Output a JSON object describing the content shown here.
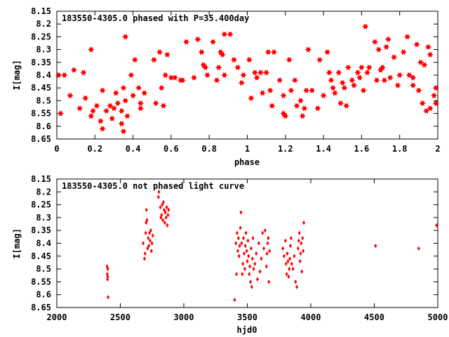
{
  "chart_data": [
    {
      "type": "scatter",
      "title": "183550-4305.0 phased with P=35.400day",
      "xlabel": "phase",
      "ylabel": "I[mag]",
      "xlim": [
        0,
        2
      ],
      "ylim": [
        8.15,
        8.65
      ],
      "y_inverted": true,
      "x_ticks": [
        0,
        0.2,
        0.4,
        0.6,
        0.8,
        1,
        1.2,
        1.4,
        1.6,
        1.8,
        2
      ],
      "x_tick_labels": [
        "0",
        "0.2",
        "0.4",
        "0.6",
        "0.8",
        "1",
        "1.2",
        "1.4",
        "1.6",
        "1.8",
        "2"
      ],
      "y_ticks": [
        8.15,
        8.2,
        8.25,
        8.3,
        8.35,
        8.4,
        8.45,
        8.5,
        8.55,
        8.6,
        8.65
      ],
      "y_tick_labels": [
        "8.15",
        "8.2",
        "8.25",
        "8.3",
        "8.35",
        "8.4",
        "8.45",
        "8.5",
        "8.55",
        "8.6",
        "8.65"
      ],
      "grid": false,
      "marker": "star",
      "color": "#ff0000",
      "points": [
        [
          0.01,
          8.4
        ],
        [
          0.02,
          8.55
        ],
        [
          0.04,
          8.4
        ],
        [
          0.07,
          8.48
        ],
        [
          0.09,
          8.38
        ],
        [
          0.12,
          8.53
        ],
        [
          0.14,
          8.39
        ],
        [
          0.15,
          8.49
        ],
        [
          0.18,
          8.3
        ],
        [
          0.18,
          8.56
        ],
        [
          0.19,
          8.54
        ],
        [
          0.21,
          8.52
        ],
        [
          0.23,
          8.58
        ],
        [
          0.24,
          8.61
        ],
        [
          0.24,
          8.46
        ],
        [
          0.26,
          8.54
        ],
        [
          0.28,
          8.52
        ],
        [
          0.29,
          8.57
        ],
        [
          0.3,
          8.53
        ],
        [
          0.31,
          8.47
        ],
        [
          0.32,
          8.51
        ],
        [
          0.34,
          8.54
        ],
        [
          0.34,
          8.59
        ],
        [
          0.35,
          8.62
        ],
        [
          0.35,
          8.45
        ],
        [
          0.36,
          8.25
        ],
        [
          0.36,
          8.5
        ],
        [
          0.37,
          8.56
        ],
        [
          0.39,
          8.4
        ],
        [
          0.4,
          8.48
        ],
        [
          0.41,
          8.34
        ],
        [
          0.43,
          8.45
        ],
        [
          0.44,
          8.51
        ],
        [
          0.44,
          8.53
        ],
        [
          0.46,
          8.47
        ],
        [
          0.51,
          8.34
        ],
        [
          0.52,
          8.51
        ],
        [
          0.54,
          8.31
        ],
        [
          0.55,
          8.45
        ],
        [
          0.56,
          8.52
        ],
        [
          0.57,
          8.4
        ],
        [
          0.58,
          8.32
        ],
        [
          0.6,
          8.41
        ],
        [
          0.62,
          8.41
        ],
        [
          0.65,
          8.42
        ],
        [
          0.66,
          8.42
        ],
        [
          0.68,
          8.27
        ],
        [
          0.72,
          8.41
        ],
        [
          0.74,
          8.26
        ],
        [
          0.76,
          8.31
        ],
        [
          0.77,
          8.36
        ],
        [
          0.78,
          8.37
        ],
        [
          0.79,
          8.4
        ],
        [
          0.82,
          8.27
        ],
        [
          0.84,
          8.42
        ],
        [
          0.85,
          8.37
        ],
        [
          0.86,
          8.31
        ],
        [
          0.87,
          8.32
        ],
        [
          0.88,
          8.24
        ],
        [
          0.88,
          8.4
        ],
        [
          0.91,
          8.24
        ],
        [
          0.93,
          8.34
        ],
        [
          0.95,
          8.37
        ],
        [
          0.97,
          8.43
        ],
        [
          0.98,
          8.4
        ],
        [
          1.01,
          8.34
        ],
        [
          1.02,
          8.49
        ],
        [
          1.04,
          8.39
        ],
        [
          1.05,
          8.41
        ],
        [
          1.07,
          8.39
        ],
        [
          1.08,
          8.47
        ],
        [
          1.1,
          8.39
        ],
        [
          1.11,
          8.31
        ],
        [
          1.12,
          8.46
        ],
        [
          1.13,
          8.52
        ],
        [
          1.14,
          8.31
        ],
        [
          1.17,
          8.42
        ],
        [
          1.19,
          8.55
        ],
        [
          1.19,
          8.48
        ],
        [
          1.2,
          8.56
        ],
        [
          1.22,
          8.34
        ],
        [
          1.23,
          8.46
        ],
        [
          1.25,
          8.42
        ],
        [
          1.26,
          8.52
        ],
        [
          1.28,
          8.5
        ],
        [
          1.29,
          8.56
        ],
        [
          1.3,
          8.53
        ],
        [
          1.31,
          8.46
        ],
        [
          1.32,
          8.3
        ],
        [
          1.34,
          8.46
        ],
        [
          1.37,
          8.53
        ],
        [
          1.38,
          8.34
        ],
        [
          1.4,
          8.48
        ],
        [
          1.42,
          8.31
        ],
        [
          1.43,
          8.39
        ],
        [
          1.44,
          8.42
        ],
        [
          1.45,
          8.45
        ],
        [
          1.46,
          8.47
        ],
        [
          1.48,
          8.39
        ],
        [
          1.49,
          8.51
        ],
        [
          1.5,
          8.43
        ],
        [
          1.51,
          8.45
        ],
        [
          1.52,
          8.52
        ],
        [
          1.53,
          8.37
        ],
        [
          1.55,
          8.42
        ],
        [
          1.56,
          8.44
        ],
        [
          1.58,
          8.39
        ],
        [
          1.59,
          8.41
        ],
        [
          1.6,
          8.37
        ],
        [
          1.61,
          8.46
        ],
        [
          1.62,
          8.21
        ],
        [
          1.63,
          8.39
        ],
        [
          1.64,
          8.37
        ],
        [
          1.67,
          8.27
        ],
        [
          1.68,
          8.42
        ],
        [
          1.69,
          8.3
        ],
        [
          1.7,
          8.38
        ],
        [
          1.71,
          8.37
        ],
        [
          1.72,
          8.42
        ],
        [
          1.73,
          8.29
        ],
        [
          1.74,
          8.26
        ],
        [
          1.75,
          8.41
        ],
        [
          1.77,
          8.33
        ],
        [
          1.79,
          8.44
        ],
        [
          1.8,
          8.4
        ],
        [
          1.82,
          8.31
        ],
        [
          1.84,
          8.25
        ],
        [
          1.85,
          8.4
        ],
        [
          1.87,
          8.44
        ],
        [
          1.87,
          8.41
        ],
        [
          1.89,
          8.28
        ],
        [
          1.9,
          8.46
        ],
        [
          1.91,
          8.35
        ],
        [
          1.92,
          8.51
        ],
        [
          1.93,
          8.36
        ],
        [
          1.94,
          8.54
        ],
        [
          1.95,
          8.29
        ],
        [
          1.96,
          8.32
        ],
        [
          1.96,
          8.53
        ],
        [
          1.98,
          8.48
        ],
        [
          1.99,
          8.51
        ],
        [
          1.99,
          8.45
        ]
      ]
    },
    {
      "type": "scatter",
      "title": "183550-4305.0 not phased light curve",
      "xlabel": "hjd0",
      "ylabel": "I[mag]",
      "xlim": [
        2000,
        5000
      ],
      "ylim": [
        8.15,
        8.65
      ],
      "y_inverted": true,
      "x_ticks": [
        2000,
        2500,
        3000,
        3500,
        4000,
        4500,
        5000
      ],
      "x_tick_labels": [
        "2000",
        "2500",
        "3000",
        "3500",
        "4000",
        "4500",
        "5000"
      ],
      "y_ticks": [
        8.15,
        8.2,
        8.25,
        8.3,
        8.35,
        8.4,
        8.45,
        8.5,
        8.55,
        8.6,
        8.65
      ],
      "y_tick_labels": [
        "8.15",
        "8.2",
        "8.25",
        "8.3",
        "8.35",
        "8.4",
        "8.45",
        "8.5",
        "8.55",
        "8.6",
        "8.65"
      ],
      "grid": false,
      "marker": "diamond",
      "color": "#ff0000",
      "points": [
        [
          2395,
          8.49
        ],
        [
          2397,
          8.52
        ],
        [
          2399,
          8.54
        ],
        [
          2401,
          8.53
        ],
        [
          2402,
          8.5
        ],
        [
          2404,
          8.61
        ],
        [
          2680,
          8.4
        ],
        [
          2690,
          8.46
        ],
        [
          2695,
          8.44
        ],
        [
          2700,
          8.36
        ],
        [
          2703,
          8.32
        ],
        [
          2706,
          8.27
        ],
        [
          2710,
          8.31
        ],
        [
          2715,
          8.42
        ],
        [
          2720,
          8.38
        ],
        [
          2725,
          8.41
        ],
        [
          2730,
          8.36
        ],
        [
          2735,
          8.39
        ],
        [
          2740,
          8.35
        ],
        [
          2745,
          8.43
        ],
        [
          2750,
          8.4
        ],
        [
          2755,
          8.37
        ],
        [
          2800,
          8.22
        ],
        [
          2805,
          8.2
        ],
        [
          2815,
          8.26
        ],
        [
          2820,
          8.3
        ],
        [
          2825,
          8.29
        ],
        [
          2830,
          8.25
        ],
        [
          2835,
          8.31
        ],
        [
          2840,
          8.24
        ],
        [
          2845,
          8.27
        ],
        [
          2850,
          8.32
        ],
        [
          2855,
          8.28
        ],
        [
          2860,
          8.3
        ],
        [
          2865,
          8.26
        ],
        [
          2870,
          8.33
        ],
        [
          2875,
          8.29
        ],
        [
          2880,
          8.27
        ],
        [
          3400,
          8.62
        ],
        [
          3410,
          8.4
        ],
        [
          3415,
          8.52
        ],
        [
          3420,
          8.36
        ],
        [
          3425,
          8.43
        ],
        [
          3430,
          8.38
        ],
        [
          3435,
          8.45
        ],
        [
          3440,
          8.41
        ],
        [
          3445,
          8.34
        ],
        [
          3450,
          8.28
        ],
        [
          3455,
          8.4
        ],
        [
          3460,
          8.52
        ],
        [
          3465,
          8.48
        ],
        [
          3470,
          8.38
        ],
        [
          3475,
          8.44
        ],
        [
          3480,
          8.5
        ],
        [
          3485,
          8.41
        ],
        [
          3490,
          8.36
        ],
        [
          3495,
          8.43
        ],
        [
          3500,
          8.47
        ],
        [
          3505,
          8.39
        ],
        [
          3510,
          8.45
        ],
        [
          3515,
          8.52
        ],
        [
          3520,
          8.49
        ],
        [
          3525,
          8.55
        ],
        [
          3530,
          8.42
        ],
        [
          3535,
          8.57
        ],
        [
          3540,
          8.46
        ],
        [
          3545,
          8.38
        ],
        [
          3550,
          8.5
        ],
        [
          3560,
          8.48
        ],
        [
          3570,
          8.44
        ],
        [
          3580,
          8.54
        ],
        [
          3590,
          8.4
        ],
        [
          3600,
          8.51
        ],
        [
          3610,
          8.46
        ],
        [
          3620,
          8.36
        ],
        [
          3630,
          8.42
        ],
        [
          3640,
          8.35
        ],
        [
          3650,
          8.49
        ],
        [
          3655,
          8.44
        ],
        [
          3660,
          8.4
        ],
        [
          3665,
          8.38
        ],
        [
          3670,
          8.55
        ],
        [
          3675,
          8.43
        ],
        [
          3780,
          8.42
        ],
        [
          3790,
          8.45
        ],
        [
          3800,
          8.39
        ],
        [
          3805,
          8.48
        ],
        [
          3810,
          8.52
        ],
        [
          3815,
          8.44
        ],
        [
          3820,
          8.47
        ],
        [
          3825,
          8.53
        ],
        [
          3830,
          8.5
        ],
        [
          3835,
          8.46
        ],
        [
          3840,
          8.41
        ],
        [
          3845,
          8.38
        ],
        [
          3850,
          8.48
        ],
        [
          3860,
          8.5
        ],
        [
          3870,
          8.45
        ],
        [
          3880,
          8.55
        ],
        [
          3890,
          8.57
        ],
        [
          3900,
          8.42
        ],
        [
          3905,
          8.39
        ],
        [
          3910,
          8.36
        ],
        [
          3915,
          8.47
        ],
        [
          3920,
          8.44
        ],
        [
          3925,
          8.4
        ],
        [
          3930,
          8.51
        ],
        [
          3935,
          8.38
        ],
        [
          3940,
          8.43
        ],
        [
          3945,
          8.32
        ],
        [
          4510,
          8.41
        ],
        [
          4850,
          8.42
        ],
        [
          4990,
          8.33
        ]
      ]
    }
  ]
}
